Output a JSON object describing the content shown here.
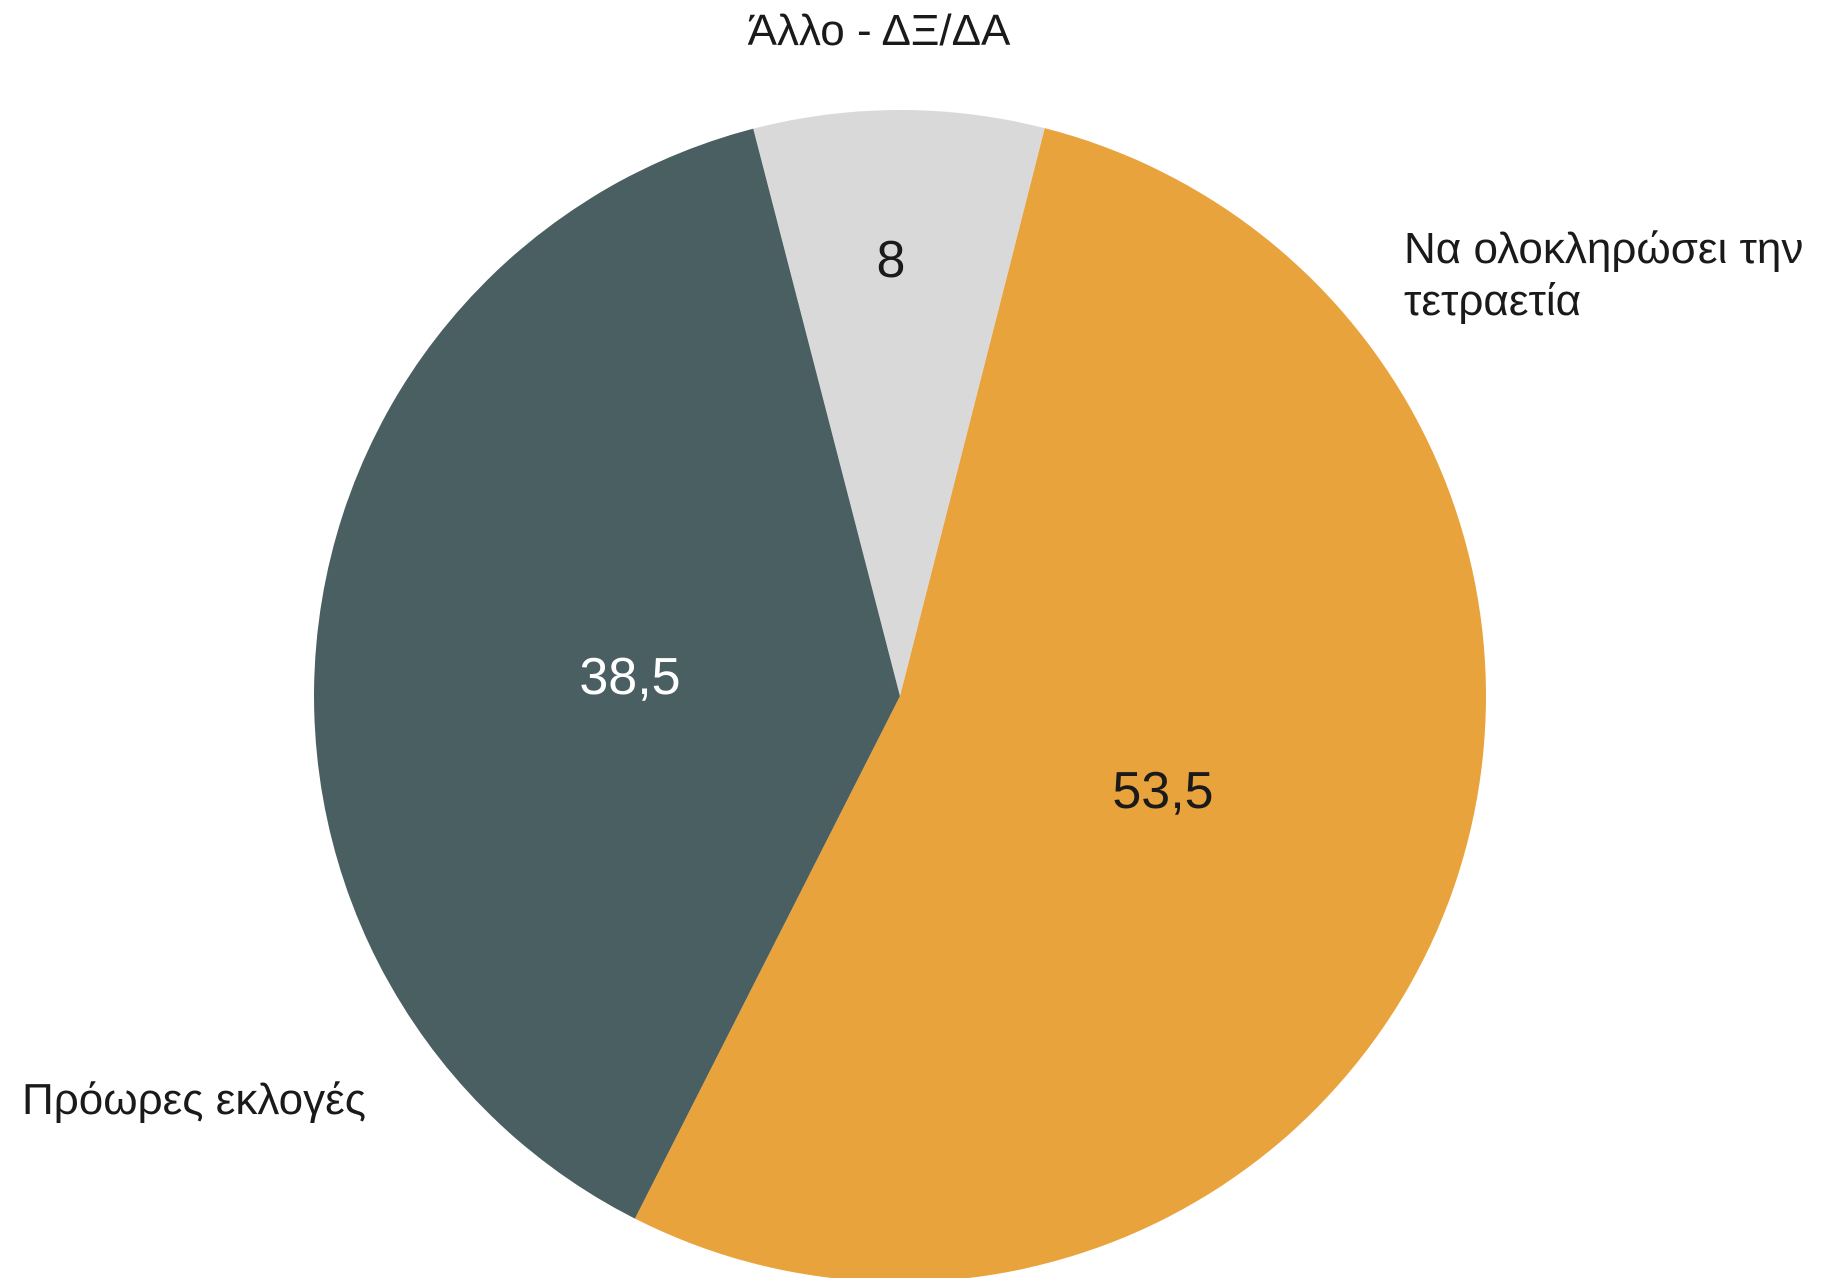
{
  "chart_data": {
    "type": "pie",
    "title": "",
    "slices": [
      {
        "label": "Να ολοκληρώσει την τετραετία",
        "label_lines": [
          "Να ολοκληρώσει την",
          "τετραετία"
        ],
        "value": 53.5,
        "value_label": "53,5",
        "color": "#E8A33D",
        "text_color": "#1a1a1a"
      },
      {
        "label": "Πρόωρες εκλογές",
        "label_lines": [
          "Πρόωρες εκλογές"
        ],
        "value": 38.5,
        "value_label": "38,5",
        "color": "#4A5F62",
        "text_color": "#ffffff"
      },
      {
        "label": "Άλλο - ΔΞ/ΔΑ",
        "label_lines": [
          "Άλλο - ΔΞ/ΔΑ"
        ],
        "value": 8,
        "value_label": "8",
        "color": "#D9D9D9",
        "text_color": "#1a1a1a"
      }
    ],
    "legend": "none",
    "labels": "outside-category, inside-value"
  }
}
